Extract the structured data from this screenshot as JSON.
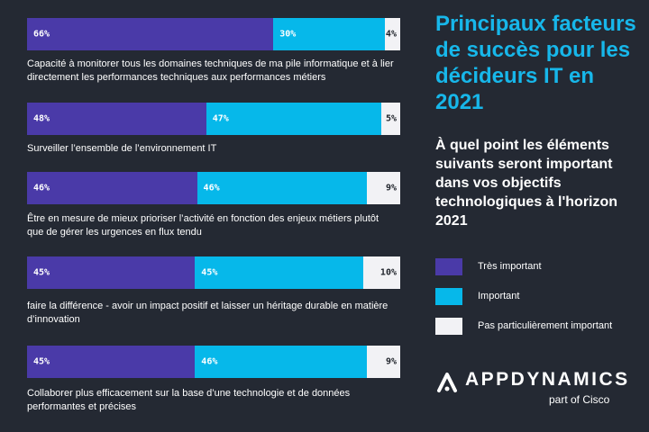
{
  "title": "Principaux facteurs de succès pour les décideurs IT en 2021",
  "subtitle": "À quel point les éléments suivants seront important dans vos objectifs technologiques à l'horizon 2021",
  "legend": [
    {
      "label": "Très important",
      "color": "#4a3aa8"
    },
    {
      "label": "Important",
      "color": "#06b8ea"
    },
    {
      "label": "Pas particulièrement important",
      "color": "#f2f2f5"
    }
  ],
  "logo": {
    "name": "APPDYNAMICS",
    "sub": "part of Cisco"
  },
  "chart_data": {
    "type": "bar",
    "orientation": "horizontal",
    "stacked": true,
    "unit": "%",
    "categories": [
      "Capacité à monitorer tous les domaines techniques de ma pile informatique et à lier directement les performances techniques aux performances métiers",
      "Surveiller l’ensemble de l’environnement IT",
      "Être en mesure de mieux prioriser l’activité en fonction des enjeux métiers plutôt que de gérer les urgences en flux tendu",
      "faire la différence - avoir un impact positif et laisser un héritage durable en matière d’innovation",
      "Collaborer plus efficacement sur la base d’une technologie et de données performantes et précises"
    ],
    "series": [
      {
        "name": "Très important",
        "values": [
          66,
          48,
          46,
          45,
          45
        ],
        "labels": [
          "66%",
          "48%",
          "46%",
          "45%",
          "45%"
        ]
      },
      {
        "name": "Important",
        "values": [
          30,
          47,
          46,
          45,
          46
        ],
        "labels": [
          "30%",
          "47%",
          "46%",
          "45%",
          "46%"
        ]
      },
      {
        "name": "Pas particulièrement important",
        "values": [
          4,
          5,
          9,
          10,
          9
        ],
        "labels": [
          "4%",
          "5%",
          "9%",
          "10%",
          "9%"
        ]
      }
    ],
    "xlim": [
      0,
      100
    ]
  }
}
